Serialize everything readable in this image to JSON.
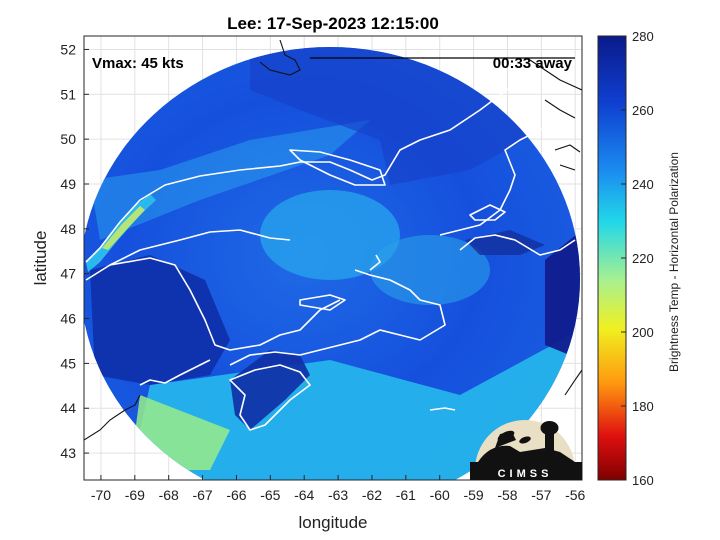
{
  "figure": {
    "title": "Lee: 17-Sep-2023 12:15:00",
    "xlabel": "longitude",
    "ylabel": "latitude",
    "vmax_label": "Vmax: 45 kts",
    "time_away_label": "00:33 away",
    "logo_text": "CIMSS"
  },
  "map": {
    "x_ticks": [
      "-70",
      "-69",
      "-68",
      "-67",
      "-66",
      "-65",
      "-64",
      "-63",
      "-62",
      "-61",
      "-60",
      "-59",
      "-58",
      "-57",
      "-56"
    ],
    "y_ticks": [
      "52",
      "51",
      "50",
      "49",
      "48",
      "47",
      "46",
      "45",
      "44",
      "43"
    ],
    "lon_range": [
      -70.5,
      -55.8
    ],
    "lat_range": [
      42.4,
      52.3
    ],
    "swath_center": [
      -63.2,
      46.8
    ],
    "grid": true
  },
  "colorbar": {
    "label": "Brightness Temp - Horizontal Polarization",
    "range": [
      160,
      280
    ],
    "ticks": [
      "280",
      "260",
      "240",
      "220",
      "200",
      "180",
      "160"
    ],
    "colors": [
      "#0a1a8a",
      "#0f3fd0",
      "#1a8af0",
      "#22d8e8",
      "#a8f090",
      "#f0f020",
      "#ff9a10",
      "#e01010",
      "#800000"
    ]
  }
}
